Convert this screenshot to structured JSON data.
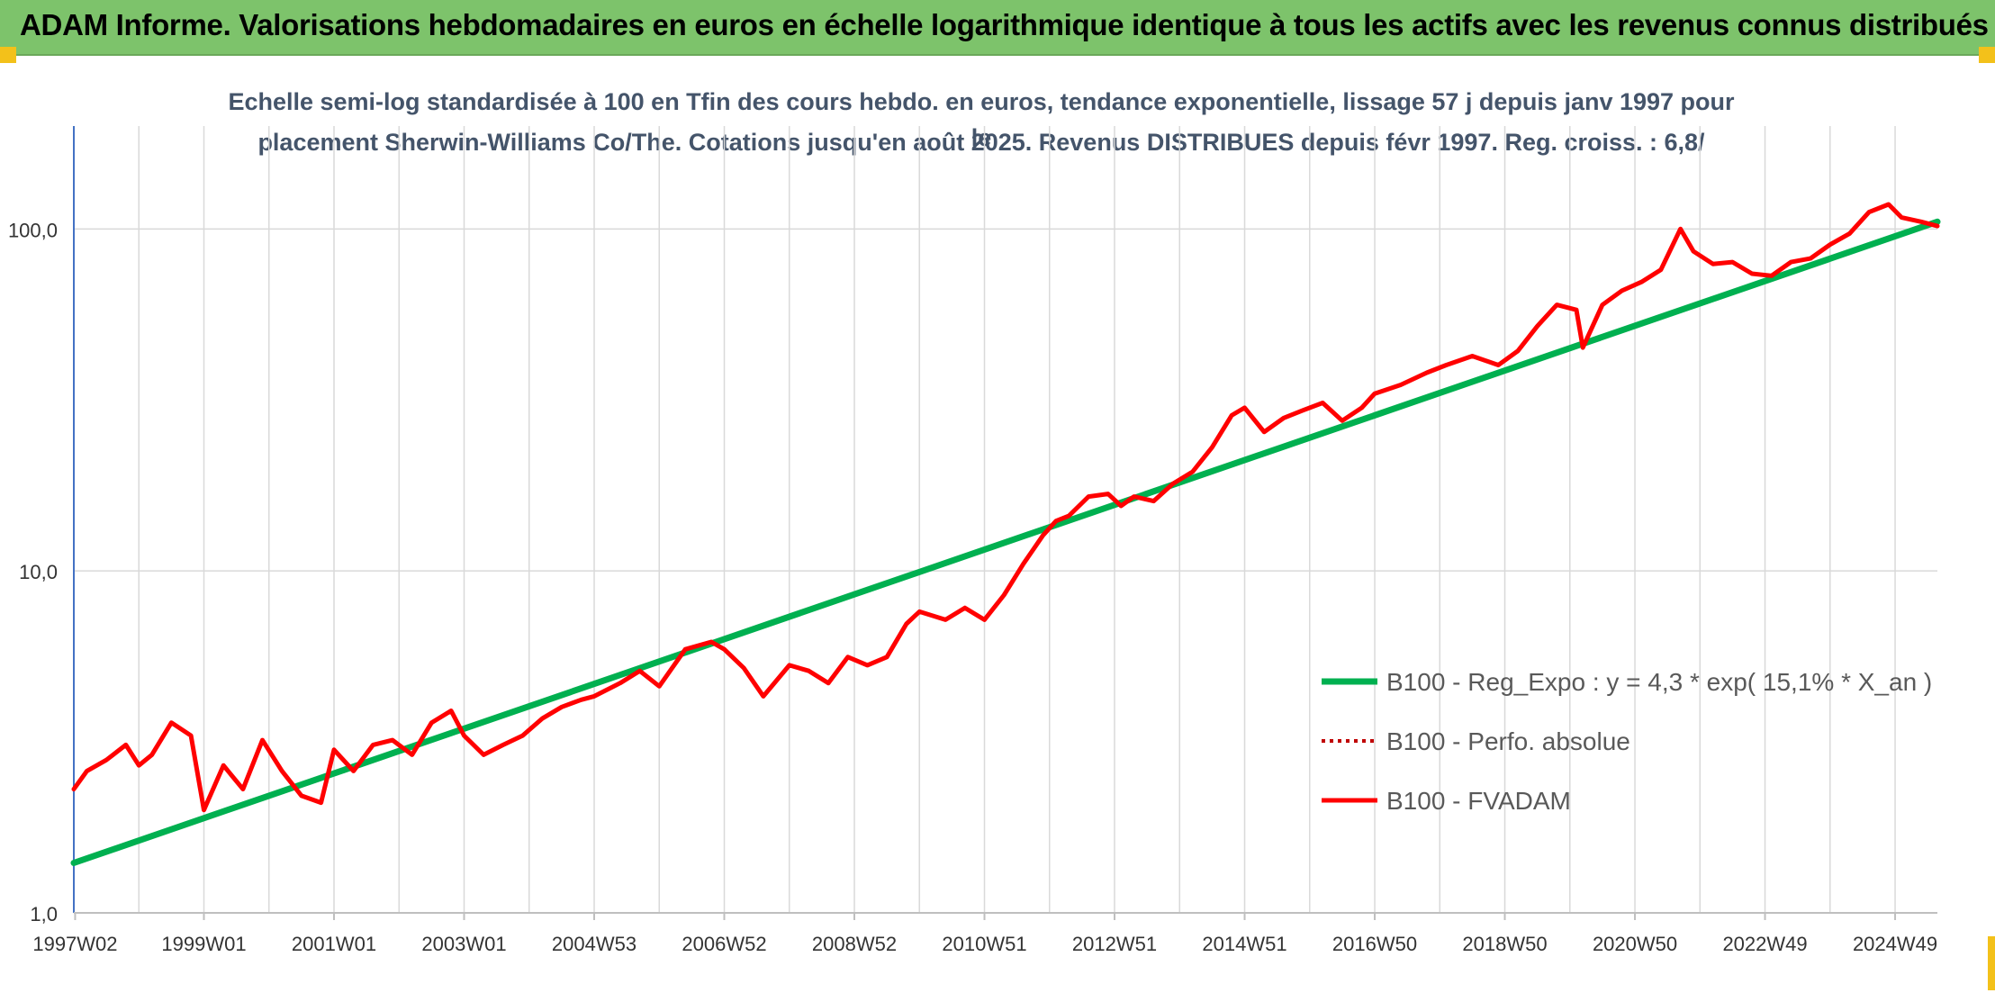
{
  "banner": {
    "title": "ADAM Informe. Valorisations hebdomadaires en euros en échelle logarithmique identique à tous les actifs avec les revenus connus distribués"
  },
  "colors": {
    "banner_bg": "#7dc36b",
    "corner_accent": "#f3c11a",
    "trend": "#00b050",
    "fvadam": "#ff0000",
    "perfo": "#c00000",
    "grid": "#d9d9d9",
    "axis": "#4472c4",
    "text": "#44546a"
  },
  "chart_data": {
    "type": "line",
    "title_line1": "Echelle semi-log standardisée à 100 en Tfin des cours hebdo. en euros, tendance exponentielle, lissage 57 j depuis janv 1997 pour le",
    "title_line2": "placement Sherwin-Williams Co/The. Cotations jusqu'en août 2025. Revenus DISTRIBUES depuis févr 1997. Reg. croiss. : 6,8/",
    "y_scale": "log",
    "ylim": [
      1,
      200
    ],
    "y_ticks": [
      1,
      10,
      100
    ],
    "y_tick_labels": [
      "1,0",
      "10,0",
      "100,0"
    ],
    "xlim": [
      1997.0,
      2025.65
    ],
    "x_tick_labels": [
      "1997W02",
      "1999W01",
      "2001W01",
      "2003W01",
      "2004W53",
      "2006W52",
      "2008W52",
      "2010W51",
      "2012W51",
      "2014W51",
      "2016W50",
      "2018W50",
      "2020W50",
      "2022W49",
      "2024W49"
    ],
    "x_tick_positions": [
      1997.02,
      1999.0,
      2001.0,
      2003.0,
      2005.0,
      2007.0,
      2009.0,
      2011.0,
      2013.0,
      2015.0,
      2017.0,
      2019.0,
      2021.0,
      2023.0,
      2025.0
    ],
    "legend_position": "bottom-right",
    "series": [
      {
        "name": "B100 - Reg_Expo : y = 4,3 * exp( 15,1% *  X_an )",
        "style": "solid-green",
        "x": [
          1997.0,
          2025.65
        ],
        "y": [
          1.4,
          105
        ]
      },
      {
        "name": "B100 - Perfo. absolue",
        "style": "dotted-red",
        "x": [],
        "y": []
      },
      {
        "name": "B100 - FVADAM",
        "style": "solid-red",
        "x": [
          1997.0,
          1997.2,
          1997.5,
          1997.8,
          1998.0,
          1998.2,
          1998.5,
          1998.8,
          1999.0,
          1999.3,
          1999.6,
          1999.9,
          2000.2,
          2000.5,
          2000.8,
          2001.0,
          2001.3,
          2001.6,
          2001.9,
          2002.2,
          2002.5,
          2002.8,
          2003.0,
          2003.3,
          2003.6,
          2003.9,
          2004.2,
          2004.5,
          2004.8,
          2005.0,
          2005.4,
          2005.7,
          2006.0,
          2006.4,
          2006.8,
          2007.0,
          2007.3,
          2007.6,
          2008.0,
          2008.3,
          2008.6,
          2008.9,
          2009.2,
          2009.5,
          2009.8,
          2010.0,
          2010.4,
          2010.7,
          2011.0,
          2011.3,
          2011.6,
          2011.9,
          2012.1,
          2012.3,
          2012.6,
          2012.9,
          2013.1,
          2013.3,
          2013.6,
          2013.9,
          2014.2,
          2014.5,
          2014.8,
          2015.0,
          2015.3,
          2015.6,
          2015.9,
          2016.2,
          2016.5,
          2016.8,
          2017.0,
          2017.4,
          2017.8,
          2018.1,
          2018.5,
          2018.9,
          2019.2,
          2019.5,
          2019.8,
          2020.1,
          2020.2,
          2020.5,
          2020.8,
          2021.1,
          2021.4,
          2021.7,
          2021.9,
          2022.2,
          2022.5,
          2022.8,
          2023.1,
          2023.4,
          2023.7,
          2024.0,
          2024.3,
          2024.6,
          2024.9,
          2025.1,
          2025.4,
          2025.65
        ],
        "y": [
          2.3,
          2.6,
          2.8,
          3.1,
          2.7,
          2.9,
          3.6,
          3.3,
          2.0,
          2.7,
          2.3,
          3.2,
          2.6,
          2.2,
          2.1,
          3.0,
          2.6,
          3.1,
          3.2,
          2.9,
          3.6,
          3.9,
          3.3,
          2.9,
          3.1,
          3.3,
          3.7,
          4.0,
          4.2,
          4.3,
          4.7,
          5.1,
          4.6,
          5.9,
          6.2,
          5.9,
          5.2,
          4.3,
          5.3,
          5.1,
          4.7,
          5.6,
          5.3,
          5.6,
          7.0,
          7.6,
          7.2,
          7.8,
          7.2,
          8.5,
          10.5,
          12.7,
          14.0,
          14.5,
          16.5,
          16.8,
          15.5,
          16.5,
          16.0,
          18.0,
          19.5,
          23.0,
          28.5,
          30.0,
          25.5,
          28.0,
          29.5,
          31.0,
          27.5,
          30.0,
          33.0,
          35.0,
          38.0,
          40.0,
          42.5,
          40.0,
          44.0,
          52.0,
          60.0,
          58.0,
          45.0,
          60.0,
          66.0,
          70.0,
          76.0,
          100.0,
          86.0,
          79.0,
          80.0,
          74.0,
          73.0,
          80.0,
          82.0,
          90.0,
          97.0,
          112.0,
          118.0,
          108.0,
          105.0,
          102.0
        ]
      }
    ]
  }
}
